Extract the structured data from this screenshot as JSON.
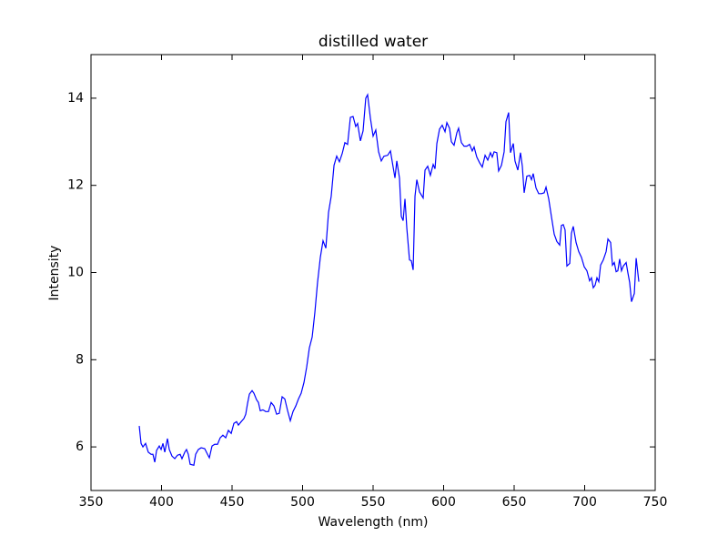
{
  "chart_data": {
    "type": "line",
    "title": "distilled water",
    "x_label": "Wavelength (nm)",
    "y_label": "Intensity",
    "xlim": [
      350,
      750
    ],
    "ylim": [
      5,
      15
    ],
    "xticks": [
      350,
      400,
      450,
      500,
      550,
      600,
      650,
      700,
      750
    ],
    "yticks": [
      6,
      8,
      10,
      12,
      14
    ],
    "series": [
      {
        "color": "#0000ff",
        "x": [
          384.2,
          385.5,
          386.8,
          388.7,
          390.6,
          392.6,
          393.9,
          395.2,
          396.5,
          398.4,
          399.7,
          401,
          402.3,
          404.2,
          405.5,
          407.4,
          409.4,
          411.3,
          413.2,
          414.5,
          416.5,
          417.7,
          419,
          420.3,
          422.9,
          424.2,
          426.1,
          428.1,
          430.6,
          432.6,
          433.9,
          435.8,
          437.7,
          439.7,
          441.6,
          443.5,
          445.5,
          447.4,
          449.4,
          451.3,
          453.2,
          454.5,
          456.5,
          458.4,
          459.7,
          461,
          462.3,
          464.2,
          465.5,
          467.4,
          468.7,
          470,
          471.9,
          473.9,
          475.8,
          477.7,
          479.7,
          481.6,
          483.5,
          485.5,
          487.4,
          489.4,
          491.3,
          493.2,
          495.2,
          497.1,
          499,
          501,
          502.9,
          504.8,
          506.8,
          508.7,
          510.6,
          512.6,
          514.5,
          516.5,
          518.4,
          520.3,
          522.3,
          524.2,
          526.1,
          528.1,
          530,
          531.9,
          533.9,
          535.8,
          537.7,
          539,
          541,
          542.9,
          544.8,
          546.1,
          548.1,
          550,
          551.9,
          553.9,
          555.8,
          557.7,
          560.3,
          562.3,
          564.2,
          565.5,
          566.8,
          568.7,
          570,
          571.3,
          572.6,
          573.9,
          575.8,
          577.1,
          578.4,
          579.7,
          581,
          582.9,
          585.5,
          586.8,
          588.7,
          590.6,
          592.6,
          593.9,
          595.2,
          597.1,
          599,
          601,
          602.3,
          604.2,
          605.5,
          607.4,
          609.4,
          610.6,
          612.6,
          614.5,
          616.5,
          618.4,
          620.3,
          621.6,
          623.5,
          625.5,
          627.4,
          629.4,
          631.3,
          633.2,
          634.5,
          635.8,
          637.7,
          639,
          641,
          642.9,
          644.2,
          646.1,
          647.4,
          649.4,
          650.6,
          652.6,
          654.5,
          655.8,
          657.1,
          659,
          661,
          662.3,
          663.5,
          665.5,
          667.4,
          669.4,
          671.3,
          672.6,
          674.5,
          676.5,
          678.4,
          680.3,
          682.3,
          683.5,
          684.8,
          686.1,
          687.4,
          689.4,
          690.6,
          691.9,
          693.9,
          695.8,
          697.7,
          699.7,
          701.6,
          703.5,
          704.8,
          706.1,
          707.4,
          708.7,
          710,
          711.3,
          713.2,
          715.2,
          716.5,
          718.4,
          719.7,
          721,
          722.3,
          723.5,
          724.8,
          726.1,
          727.4,
          729.4,
          730.6,
          731.9,
          733.2,
          735.2,
          736.5,
          738.4
        ],
        "values": [
          6.48,
          6.08,
          6.0,
          6.08,
          5.88,
          5.83,
          5.83,
          5.65,
          5.92,
          6.02,
          5.94,
          6.08,
          5.88,
          6.19,
          5.94,
          5.79,
          5.73,
          5.81,
          5.83,
          5.73,
          5.88,
          5.94,
          5.83,
          5.6,
          5.58,
          5.83,
          5.94,
          5.98,
          5.96,
          5.83,
          5.75,
          6.02,
          6.06,
          6.06,
          6.21,
          6.27,
          6.21,
          6.38,
          6.31,
          6.54,
          6.58,
          6.5,
          6.58,
          6.65,
          6.75,
          7.0,
          7.21,
          7.29,
          7.23,
          7.08,
          7.02,
          6.83,
          6.85,
          6.81,
          6.81,
          7.02,
          6.94,
          6.75,
          6.77,
          7.15,
          7.1,
          6.83,
          6.6,
          6.81,
          6.94,
          7.1,
          7.23,
          7.48,
          7.83,
          8.27,
          8.52,
          9.08,
          9.77,
          10.35,
          10.73,
          10.56,
          11.38,
          11.75,
          12.46,
          12.67,
          12.54,
          12.73,
          12.98,
          12.94,
          13.56,
          13.58,
          13.35,
          13.42,
          13.02,
          13.25,
          14.0,
          14.08,
          13.54,
          13.13,
          13.27,
          12.77,
          12.56,
          12.67,
          12.69,
          12.79,
          12.42,
          12.17,
          12.56,
          12.17,
          11.29,
          11.19,
          11.69,
          11.02,
          10.29,
          10.27,
          10.06,
          11.75,
          12.13,
          11.85,
          11.71,
          12.35,
          12.44,
          12.23,
          12.48,
          12.38,
          12.96,
          13.29,
          13.38,
          13.23,
          13.44,
          13.31,
          13.0,
          12.92,
          13.21,
          13.31,
          12.98,
          12.9,
          12.9,
          12.94,
          12.79,
          12.88,
          12.65,
          12.52,
          12.42,
          12.69,
          12.58,
          12.75,
          12.65,
          12.77,
          12.75,
          12.33,
          12.46,
          12.77,
          13.46,
          13.67,
          12.75,
          12.96,
          12.56,
          12.35,
          12.75,
          12.44,
          11.83,
          12.21,
          12.23,
          12.13,
          12.27,
          11.94,
          11.81,
          11.81,
          11.83,
          11.96,
          11.69,
          11.27,
          10.88,
          10.71,
          10.63,
          11.08,
          11.1,
          10.98,
          10.15,
          10.21,
          10.9,
          11.06,
          10.69,
          10.48,
          10.35,
          10.13,
          10.04,
          9.81,
          9.88,
          9.65,
          9.71,
          9.88,
          9.79,
          10.17,
          10.29,
          10.48,
          10.77,
          10.69,
          10.17,
          10.23,
          10.02,
          10.04,
          10.31,
          10.04,
          10.15,
          10.23,
          10.0,
          9.77,
          9.33,
          9.52,
          10.33,
          9.79
        ]
      }
    ]
  }
}
